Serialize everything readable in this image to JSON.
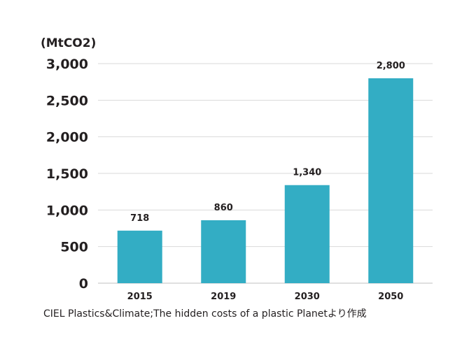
{
  "chart_data": {
    "type": "bar",
    "unit_label": "(MtCO2)",
    "categories": [
      "2015",
      "2019",
      "2030",
      "2050"
    ],
    "values": [
      718,
      860,
      1340,
      2800
    ],
    "data_labels": [
      "718",
      "860",
      "1,340",
      "2,800"
    ],
    "yticks": [
      0,
      500,
      1000,
      1500,
      2000,
      2500,
      3000
    ],
    "ytick_labels": [
      "0",
      "500",
      "1,000",
      "1,500",
      "2,000",
      "2,500",
      "3,000"
    ],
    "ylim": [
      0,
      3000
    ],
    "grid": true,
    "bar_color": "#33adc4",
    "source": "CIEL Plastics&Climate;The hidden costs of a plastic Planetより作成"
  }
}
